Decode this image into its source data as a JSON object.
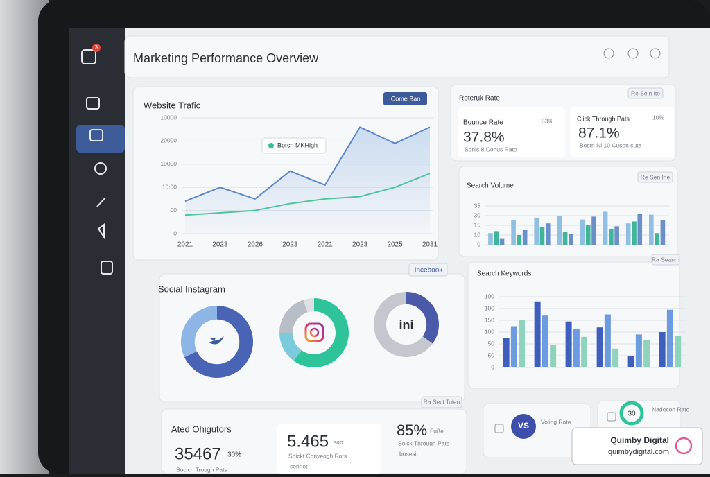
{
  "sidebar": {
    "badge": "3"
  },
  "header": {
    "title": "Marketing Performance Overview"
  },
  "traffic": {
    "title": "Website Trafic",
    "button": "Come Ban",
    "tooltip": "Borch MKHigh",
    "chart": {
      "type": "line",
      "categories": [
        "2021",
        "2023",
        "2026",
        "2023",
        "2021",
        "2023",
        "2025",
        "2031"
      ],
      "ylim": [
        0,
        5
      ],
      "yticks": [
        0,
        {
          "value": 1,
          "label": "00"
        },
        {
          "value": 2,
          "label": "10:00"
        },
        {
          "value": 3,
          "label": "10000"
        },
        {
          "value": 4,
          "label": "20000"
        },
        {
          "value": 5,
          "label": "10000"
        }
      ],
      "grid": true,
      "series": [
        {
          "color": "#5b86c9",
          "values": [
            1.4,
            2.0,
            1.5,
            2.7,
            2.1,
            4.6,
            3.9,
            4.6
          ]
        },
        {
          "color": "#4cc59a",
          "values": [
            0.8,
            0.9,
            1.0,
            1.3,
            1.5,
            1.6,
            2.0,
            2.6
          ]
        }
      ]
    }
  },
  "rates": {
    "title": "Roteruk Rate",
    "button": "Re Sein Ite",
    "items": [
      {
        "label": "Bounce Rate",
        "value": "37.8%",
        "change": "53%",
        "note": "Sonis 8 Conus Rate"
      },
      {
        "label": "Click Through Pats",
        "value": "87.1%",
        "change": "10%",
        "note": "Bostri Ni 10 Cusen suta"
      }
    ]
  },
  "volume": {
    "title": "Search Volume",
    "button": "Re Sen Ine",
    "chart": {
      "type": "bar",
      "ylim": [
        0,
        4
      ],
      "yticks": [
        0,
        {
          "value": 1,
          "label": "10"
        },
        {
          "value": 2,
          "label": "15"
        },
        {
          "value": 3,
          "label": "30"
        },
        {
          "value": 4,
          "label": "35"
        }
      ],
      "series": [
        {
          "color": "#8fc0e4",
          "values": [
            1.2,
            2.5,
            2.8,
            3.0,
            2.6,
            3.4,
            2.2,
            3.1
          ]
        },
        {
          "color": "#3fb59a",
          "values": [
            1.4,
            1.0,
            1.8,
            1.3,
            2.0,
            1.6,
            2.4,
            1.2
          ]
        },
        {
          "color": "#6b8fc8",
          "values": [
            0.6,
            1.5,
            2.2,
            1.1,
            2.9,
            1.9,
            3.2,
            2.5
          ]
        }
      ]
    }
  },
  "keywords": {
    "title": "Search Keywords",
    "button": "Ra Search",
    "chart": {
      "type": "bar",
      "ylim": [
        0,
        6
      ],
      "yticks": [
        0,
        {
          "value": 1,
          "label": "50"
        },
        {
          "value": 2,
          "label": "50"
        },
        {
          "value": 3,
          "label": "100"
        },
        {
          "value": 4,
          "label": "150"
        },
        {
          "value": 5,
          "label": "100"
        },
        {
          "value": 6,
          "label": "100"
        }
      ],
      "series": [
        {
          "color": "#3f5fbf",
          "values": [
            2.5,
            5.6,
            3.9,
            3.4,
            1.0,
            3.0
          ]
        },
        {
          "color": "#6d9be0",
          "values": [
            3.5,
            4.4,
            3.3,
            4.5,
            2.8,
            4.9
          ]
        },
        {
          "color": "#8fd3bd",
          "values": [
            4.0,
            1.9,
            2.6,
            1.6,
            2.3,
            2.7
          ]
        }
      ]
    }
  },
  "social": {
    "title": "Social Instagram",
    "button": "Incebook",
    "donuts": [
      {
        "values": [
          68,
          32
        ],
        "colors": [
          "#4a64b5",
          "#8db6e6"
        ]
      },
      {
        "values": [
          60,
          15,
          20,
          5
        ],
        "colors": [
          "#2fc39a",
          "#7ccbdc",
          "#b9bec6",
          "#dde1e6"
        ]
      },
      {
        "label": "ini",
        "values": [
          35,
          65
        ],
        "colors": [
          "#4a5aa8",
          "#c4c8ce"
        ]
      }
    ]
  },
  "metrics": {
    "title": "Ated Ohigutors",
    "button": "Ra Sect Tolen",
    "items": [
      {
        "value": "35467",
        "change": "30%",
        "note": "Socich Trough Pats"
      },
      {
        "value": "5.465",
        "change": "sao",
        "note": "Soickt Conyeagh Rats",
        "sub": "connet"
      },
      {
        "value": "85%",
        "change": "Fuße",
        "note": "Soick Through Pats",
        "sub": "bosesit"
      }
    ]
  },
  "compare": {
    "items": [
      {
        "badge": "VS",
        "label": "Voling Rate"
      },
      {
        "badge": "30",
        "label": "Nadecon Rate"
      }
    ]
  },
  "watermark": {
    "name": "Quimby Digital",
    "url": "quimbydigital.com"
  }
}
